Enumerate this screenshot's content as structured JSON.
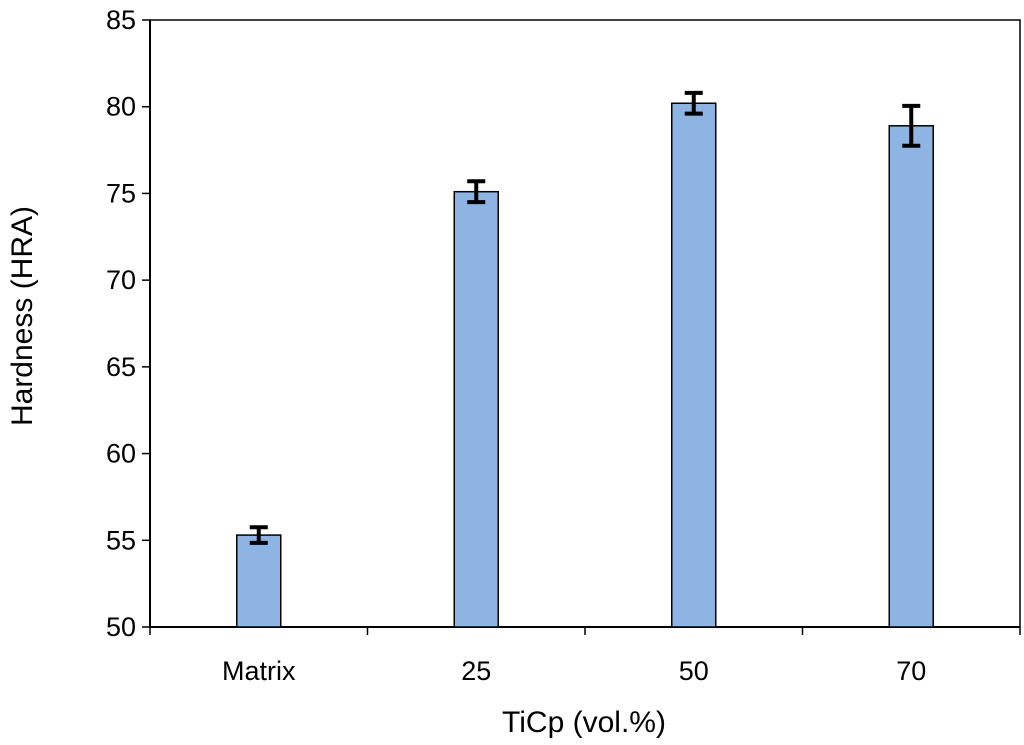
{
  "chart_data": {
    "type": "bar",
    "title": "",
    "xlabel": "TiCp (vol.%)",
    "ylabel": "Hardness (HRA)",
    "categories": [
      "Matrix",
      "25",
      "50",
      "70"
    ],
    "values": [
      55.3,
      75.1,
      80.2,
      78.9
    ],
    "errors": [
      0.45,
      0.6,
      0.6,
      1.15
    ],
    "ylim": [
      50,
      85
    ],
    "yticks": [
      50,
      55,
      60,
      65,
      70,
      75,
      80,
      85
    ],
    "grid": false,
    "legend": "none",
    "bar_color": "#8eb4e3",
    "bar_edge_color": "#000000",
    "error_bar_color": "#000000"
  }
}
